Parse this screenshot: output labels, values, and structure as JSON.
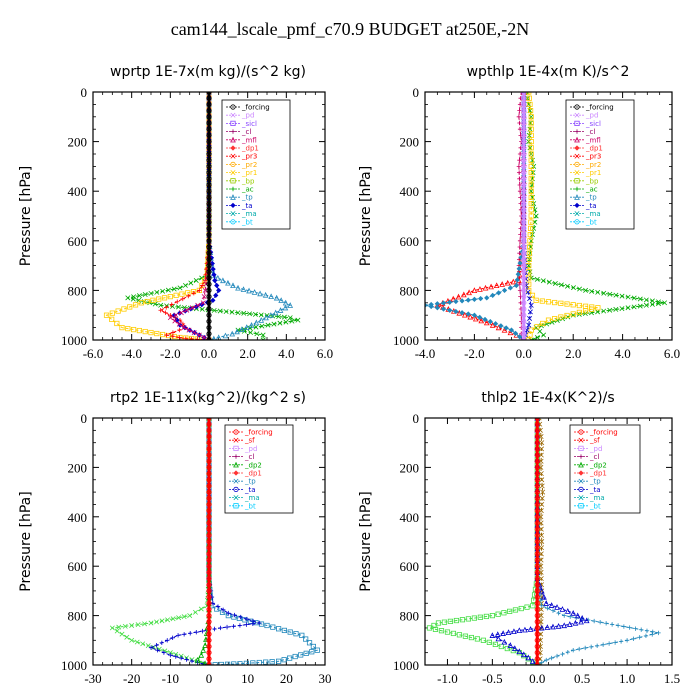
{
  "title": "cam144_lscale_pmf_c70.9  BUDGET at250E,-2N",
  "chart_data": [
    {
      "type": "line",
      "title": "wprtp  1E-7x(m kg)/(s^2 kg)",
      "ylabel": "Pressure [hPa]",
      "xlim": [
        -6,
        6
      ],
      "ylim": [
        1000,
        0
      ],
      "xticks": [
        "-6.0",
        "-4.0",
        "-2.0",
        "0.0",
        "2.0",
        "4.0",
        "6.0"
      ],
      "yticks": [
        "0",
        "200",
        "400",
        "600",
        "800",
        "1000"
      ],
      "legend": [
        "_forcing",
        "_pd",
        "_sicl",
        "_cl",
        "_mfl",
        "_dp1",
        "_pr3",
        "_pr2",
        "_pr1",
        "_bp",
        "_ac",
        "_tp",
        "_ta",
        "_ma",
        "_bt"
      ],
      "series": [
        {
          "name": "_forcing",
          "color": "#000000",
          "x": [
            0,
            0,
            0,
            0,
            0,
            0,
            0,
            0,
            0,
            0,
            0,
            0,
            0,
            0,
            0,
            0,
            0,
            0,
            0,
            0,
            0
          ],
          "y": [
            0,
            50,
            100,
            150,
            200,
            250,
            300,
            350,
            400,
            450,
            500,
            550,
            600,
            650,
            700,
            750,
            800,
            850,
            900,
            950,
            1000
          ]
        },
        {
          "name": "_ac",
          "color": "#00aa00",
          "x": [
            0,
            0,
            0,
            -0.1,
            -1.5,
            -4.2,
            -2.5,
            1.5,
            4.2,
            4.6,
            1.5,
            2.8,
            2.8
          ],
          "y": [
            0,
            300,
            600,
            740,
            790,
            830,
            860,
            890,
            910,
            920,
            960,
            980,
            1000
          ]
        },
        {
          "name": "_pr1",
          "color": "#ffcc00",
          "x": [
            0,
            0,
            -0.1,
            -0.5,
            -3.5,
            -5.3,
            -4.5,
            -1.5,
            0
          ],
          "y": [
            0,
            600,
            740,
            800,
            850,
            900,
            950,
            990,
            1000
          ]
        },
        {
          "name": "_pr3",
          "color": "#ff0000",
          "x": [
            0,
            0,
            -0.2,
            -0.5,
            -2.5,
            -1.5,
            -1.2,
            -2.2,
            -1.2,
            0
          ],
          "y": [
            0,
            600,
            760,
            800,
            880,
            920,
            950,
            980,
            995,
            1000
          ]
        },
        {
          "name": "_tp",
          "color": "#2288bb",
          "x": [
            0,
            0,
            0.2,
            1.5,
            3.5,
            4.2,
            3.2,
            2.2,
            1.2,
            0.5,
            0
          ],
          "y": [
            0,
            600,
            740,
            790,
            830,
            860,
            900,
            940,
            975,
            990,
            1000
          ]
        },
        {
          "name": "_ta",
          "color": "#0000cc",
          "x": [
            0,
            0,
            0.3,
            0.5,
            0.2,
            -1.8,
            -1.5,
            -0.5,
            0
          ],
          "y": [
            0,
            600,
            760,
            800,
            840,
            900,
            940,
            980,
            1000
          ]
        },
        {
          "name": "_mfl",
          "color": "#cc0066",
          "x": [
            0,
            0,
            -0.3,
            -2.0,
            -1.3,
            -0.5,
            0
          ],
          "y": [
            0,
            700,
            850,
            910,
            950,
            980,
            1000
          ]
        }
      ]
    },
    {
      "type": "line",
      "title": "wpthlp  1E-4x(m K)/s^2",
      "ylabel": "Pressure [hPa]",
      "xlim": [
        -4,
        6
      ],
      "ylim": [
        1000,
        0
      ],
      "xticks": [
        "-4.0",
        "-2.0",
        "0.0",
        "2.0",
        "4.0",
        "6.0"
      ],
      "yticks": [
        "0",
        "200",
        "400",
        "600",
        "800",
        "1000"
      ],
      "legend": [
        "_forcing",
        "_pd",
        "_sicl",
        "_cl",
        "_mfl",
        "_dp1",
        "_pr3",
        "_pr2",
        "_pr1",
        "_bp",
        "_ac",
        "_tp",
        "_ta",
        "_ma",
        "_bt"
      ],
      "series": [
        {
          "name": "_forcing",
          "color": "#cc88ff",
          "x": [
            0,
            0,
            0,
            0,
            0,
            0,
            0,
            0,
            0,
            0,
            0,
            0,
            0,
            0,
            0,
            0,
            0,
            0,
            0,
            0,
            0
          ],
          "y": [
            0,
            50,
            100,
            150,
            200,
            250,
            300,
            350,
            400,
            450,
            500,
            550,
            600,
            650,
            700,
            750,
            800,
            850,
            900,
            950,
            1000
          ]
        },
        {
          "name": "_ac",
          "color": "#00aa00",
          "x": [
            0.1,
            0.3,
            0.2,
            0.4,
            0.3,
            0.5,
            0.3,
            0.2,
            0.3,
            2.5,
            5.7,
            2.0,
            0.5,
            0.8,
            0.3
          ],
          "y": [
            0,
            100,
            200,
            300,
            400,
            500,
            600,
            700,
            750,
            800,
            850,
            900,
            950,
            980,
            1000
          ]
        },
        {
          "name": "_cl",
          "color": "#ffcc00",
          "x": [
            0.2,
            0.3,
            0.3,
            0.3,
            0.2,
            0.2,
            0.2,
            0.5,
            3.0,
            1.0,
            0.3,
            0.2
          ],
          "y": [
            0,
            100,
            300,
            500,
            700,
            750,
            800,
            840,
            870,
            920,
            960,
            1000
          ]
        },
        {
          "name": "_mfl",
          "color": "#cc0066",
          "x": [
            -0.1,
            -0.2,
            -0.1,
            -0.2,
            -0.1,
            -0.2,
            -0.1,
            -0.1
          ],
          "y": [
            0,
            100,
            200,
            300,
            500,
            700,
            900,
            1000
          ]
        },
        {
          "name": "_pr3",
          "color": "#ff0000",
          "x": [
            0,
            0,
            -0.2,
            -2.0,
            -3.5,
            -1.5,
            -0.3,
            0
          ],
          "y": [
            0,
            600,
            760,
            800,
            860,
            930,
            980,
            1000
          ]
        },
        {
          "name": "_tp",
          "color": "#2288bb",
          "x": [
            0,
            0,
            -0.3,
            -1.5,
            -4.0,
            -2.0,
            -0.5,
            0
          ],
          "y": [
            0,
            600,
            780,
            830,
            860,
            900,
            960,
            1000
          ]
        },
        {
          "name": "_ta",
          "color": "#0000cc",
          "x": [
            0,
            0,
            0.1,
            0.3,
            0.2,
            0
          ],
          "y": [
            0,
            600,
            780,
            860,
            940,
            1000
          ]
        }
      ]
    },
    {
      "type": "line",
      "title": "rtp2  1E-11x(kg^2)/(kg^2 s)",
      "ylabel": "Pressure [hPa]",
      "xlim": [
        -30,
        30
      ],
      "ylim": [
        1000,
        0
      ],
      "xticks": [
        "-30",
        "-20",
        "-10",
        "0",
        "10",
        "20",
        "30"
      ],
      "yticks": [
        "0",
        "200",
        "400",
        "600",
        "800",
        "1000"
      ],
      "legend": [
        "_forcing",
        "_sf",
        "_pd",
        "_cl",
        "_dp2",
        "_dp1",
        "_tp",
        "_ta",
        "_ma",
        "_bt"
      ],
      "series": [
        {
          "name": "_forcing",
          "color": "#ff0000",
          "x": [
            0,
            0,
            0,
            0,
            0,
            0,
            0,
            0,
            0,
            0,
            0,
            0,
            0,
            0,
            0,
            0,
            0,
            0,
            0,
            0,
            0
          ],
          "y": [
            0,
            50,
            100,
            150,
            200,
            250,
            300,
            350,
            400,
            450,
            500,
            550,
            600,
            650,
            700,
            750,
            800,
            850,
            900,
            950,
            1000
          ]
        },
        {
          "name": "_dp1",
          "color": "#44dd44",
          "x": [
            0,
            0,
            -0.5,
            -5,
            -15,
            -25,
            -20,
            -10,
            -3,
            0
          ],
          "y": [
            0,
            650,
            760,
            800,
            830,
            850,
            900,
            950,
            985,
            1000
          ]
        },
        {
          "name": "_tp",
          "color": "#2288bb",
          "x": [
            0,
            0,
            0.5,
            5,
            15,
            24,
            28,
            18,
            8,
            0
          ],
          "y": [
            0,
            650,
            760,
            800,
            840,
            880,
            940,
            985,
            995,
            1000
          ]
        },
        {
          "name": "_ta",
          "color": "#0000cc",
          "x": [
            0,
            0,
            1,
            5,
            13,
            3,
            -8,
            -15,
            -10,
            -3,
            0
          ],
          "y": [
            0,
            650,
            750,
            790,
            830,
            850,
            880,
            930,
            960,
            990,
            1000
          ]
        },
        {
          "name": "_dp2",
          "color": "#00aa00",
          "x": [
            0,
            0,
            -1,
            -2,
            -3,
            -1,
            0
          ],
          "y": [
            0,
            800,
            920,
            960,
            980,
            995,
            1000
          ]
        }
      ]
    },
    {
      "type": "line",
      "title": "thlp2  1E-4x(K^2)/s",
      "ylabel": "Pressure [hPa]",
      "xlim": [
        -1.25,
        1.5
      ],
      "ylim": [
        1000,
        0
      ],
      "xticks": [
        "-1.0",
        "-0.5",
        "0.0",
        "0.5",
        "1.0",
        "1.5"
      ],
      "yticks": [
        "0",
        "200",
        "400",
        "600",
        "800",
        "1000"
      ],
      "legend": [
        "_forcing",
        "_sf",
        "_pd",
        "_cl",
        "_dp2",
        "_dp1",
        "_tp",
        "_ta",
        "_ma",
        "_bt"
      ],
      "series": [
        {
          "name": "_forcing",
          "color": "#ff0000",
          "x": [
            0,
            0,
            0,
            0,
            0,
            0,
            0,
            0,
            0,
            0,
            0,
            0,
            0,
            0,
            0,
            0,
            0,
            0,
            0,
            0,
            0
          ],
          "y": [
            0,
            50,
            100,
            150,
            200,
            250,
            300,
            350,
            400,
            450,
            500,
            550,
            600,
            650,
            700,
            750,
            800,
            850,
            900,
            950,
            1000
          ]
        },
        {
          "name": "_pd",
          "color": "#996600",
          "x": [
            0.02,
            0.05,
            0.04,
            0.06,
            0.04,
            0.05,
            0.04,
            0.05,
            0.03
          ],
          "y": [
            0,
            100,
            200,
            300,
            400,
            500,
            600,
            700,
            1000
          ]
        },
        {
          "name": "_dp1",
          "color": "#44dd44",
          "x": [
            0,
            0,
            -0.05,
            -0.5,
            -1.1,
            -1.2,
            -0.6,
            -0.2,
            0
          ],
          "y": [
            0,
            650,
            760,
            800,
            830,
            850,
            900,
            950,
            1000
          ]
        },
        {
          "name": "_tp",
          "color": "#2288bb",
          "x": [
            0,
            0,
            0.05,
            0.3,
            0.9,
            1.35,
            1.0,
            0.4,
            0.1,
            0
          ],
          "y": [
            0,
            650,
            760,
            800,
            840,
            870,
            900,
            940,
            980,
            1000
          ]
        },
        {
          "name": "_ta",
          "color": "#0000cc",
          "x": [
            0,
            0,
            0.1,
            0.4,
            0.55,
            0.3,
            -0.2,
            -0.5,
            -0.3,
            -0.1,
            0
          ],
          "y": [
            0,
            650,
            750,
            790,
            820,
            840,
            860,
            880,
            920,
            970,
            1000
          ]
        }
      ]
    }
  ]
}
